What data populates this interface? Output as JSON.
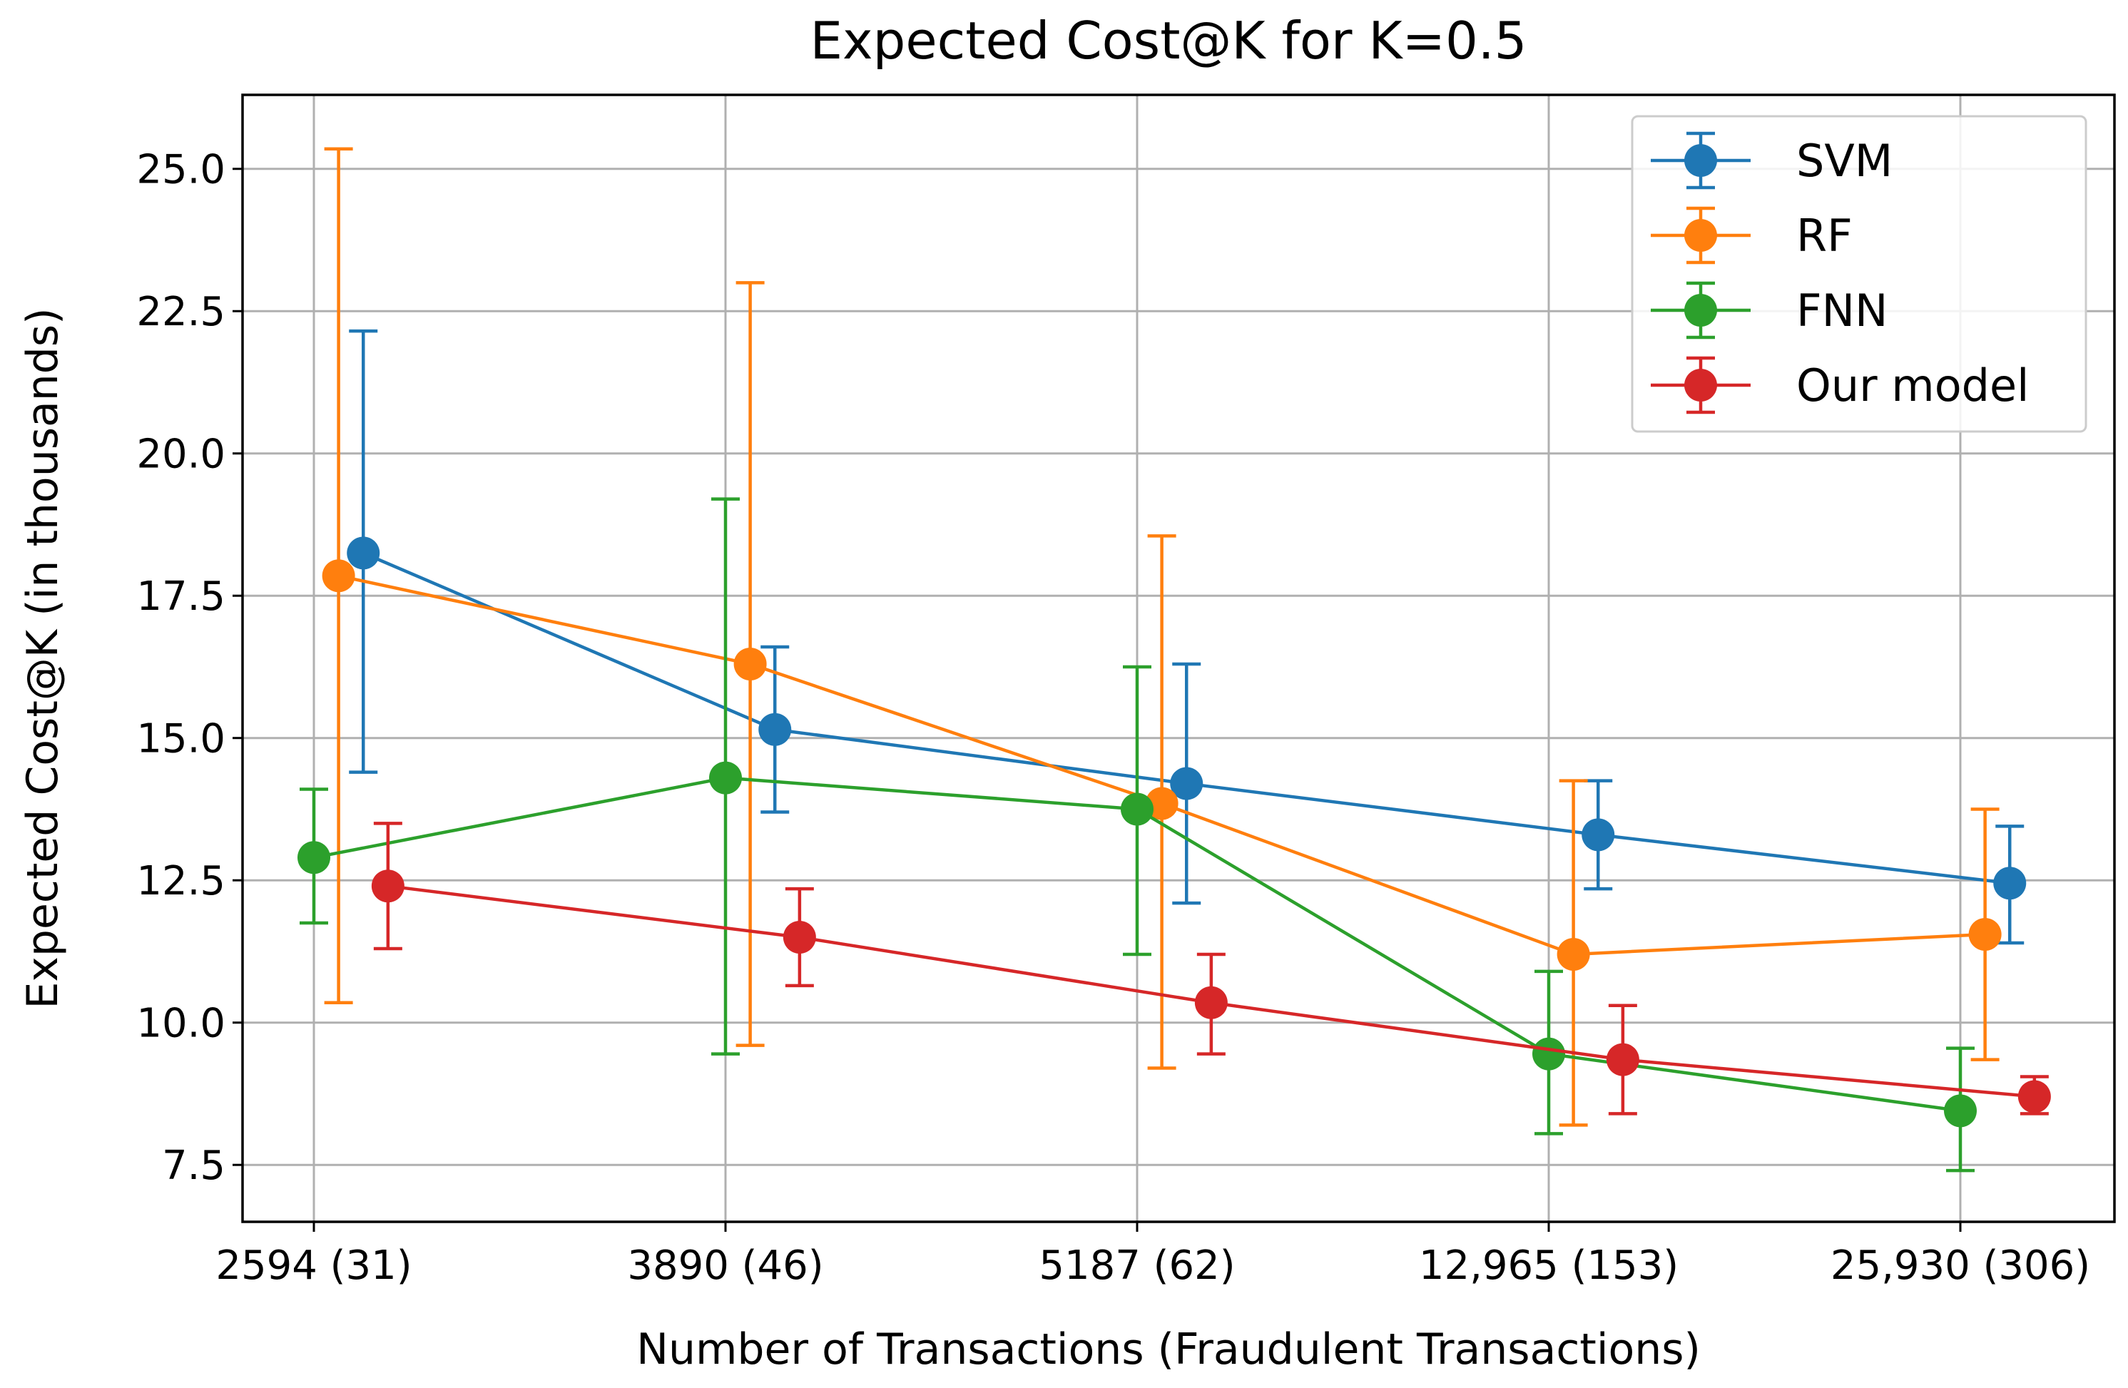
{
  "chart_data": {
    "type": "line",
    "title": "Expected Cost@K for K=0.5",
    "xlabel": "Number of Transactions (Fraudulent Transactions)",
    "ylabel": "Expected Cost@K (in thousands)",
    "categories": [
      "2594 (31)",
      "3890 (46)",
      "5187 (62)",
      "12,965 (153)",
      "25,930 (306)"
    ],
    "ylim": [
      6.5,
      26.3
    ],
    "yticks": [
      "7.5",
      "10.0",
      "12.5",
      "15.0",
      "17.5",
      "20.0",
      "22.5",
      "25.0"
    ],
    "grid": true,
    "legend_position": "top-right",
    "series": [
      {
        "name": "SVM",
        "color": "#1f77b4",
        "offset": 0.12,
        "values": [
          18.25,
          15.15,
          14.2,
          13.3,
          12.45
        ],
        "err_low": [
          14.4,
          13.7,
          12.1,
          12.35,
          11.4
        ],
        "err_high": [
          22.15,
          16.6,
          16.3,
          14.25,
          13.45
        ]
      },
      {
        "name": "RF",
        "color": "#ff7f0e",
        "offset": 0.06,
        "values": [
          17.85,
          16.3,
          13.85,
          11.2,
          11.55
        ],
        "err_low": [
          10.35,
          9.6,
          9.2,
          8.2,
          9.35
        ],
        "err_high": [
          25.35,
          23.0,
          18.55,
          14.25,
          13.75
        ]
      },
      {
        "name": "FNN",
        "color": "#2ca02c",
        "offset": 0.0,
        "values": [
          12.9,
          14.3,
          13.75,
          9.45,
          8.45
        ],
        "err_low": [
          11.75,
          9.45,
          11.2,
          8.05,
          7.4
        ],
        "err_high": [
          14.1,
          19.2,
          16.25,
          10.9,
          9.55
        ]
      },
      {
        "name": "Our model",
        "color": "#d62728",
        "offset": 0.18,
        "values": [
          12.4,
          11.5,
          10.35,
          9.35,
          8.7
        ],
        "err_low": [
          11.3,
          10.65,
          9.45,
          8.4,
          8.4
        ],
        "err_high": [
          13.5,
          12.35,
          11.2,
          10.3,
          9.05
        ]
      }
    ]
  }
}
